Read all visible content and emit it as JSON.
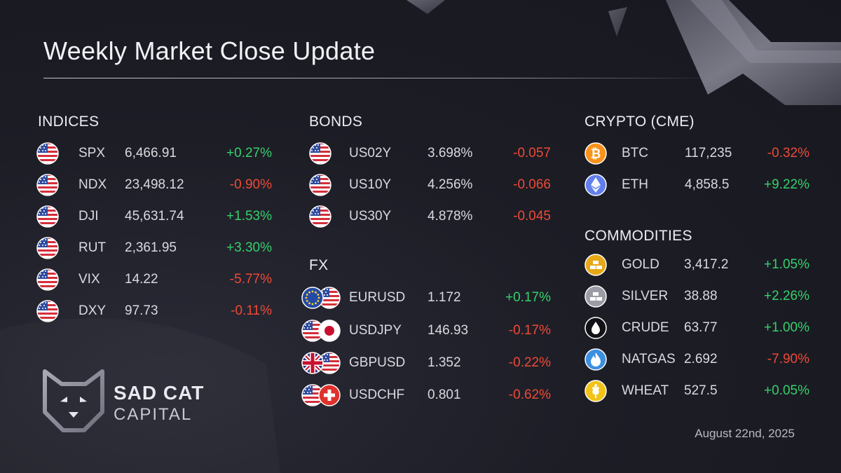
{
  "title": "Weekly Market Close Update",
  "date": "August 22nd, 2025",
  "brand": {
    "line1": "SAD CAT",
    "line2": "CAPITAL"
  },
  "colors": {
    "positive": "#35d16b",
    "negative": "#ee4a35",
    "background": "#1d1d26"
  },
  "indices": {
    "heading": "INDICES",
    "rows": [
      {
        "icon": "us-flag-icon",
        "symbol": "SPX",
        "value": "6,466.91",
        "change": "+0.27%",
        "direction": "up"
      },
      {
        "icon": "us-flag-icon",
        "symbol": "NDX",
        "value": "23,498.12",
        "change": "-0.90%",
        "direction": "down"
      },
      {
        "icon": "us-flag-icon",
        "symbol": "DJI",
        "value": "45,631.74",
        "change": "+1.53%",
        "direction": "up"
      },
      {
        "icon": "us-flag-icon",
        "symbol": "RUT",
        "value": "2,361.95",
        "change": "+3.30%",
        "direction": "up"
      },
      {
        "icon": "us-flag-icon",
        "symbol": "VIX",
        "value": "14.22",
        "change": "-5.77%",
        "direction": "down"
      },
      {
        "icon": "us-flag-icon",
        "symbol": "DXY",
        "value": "97.73",
        "change": "-0.11%",
        "direction": "down"
      }
    ]
  },
  "bonds": {
    "heading": "BONDS",
    "rows": [
      {
        "icon": "us-flag-icon",
        "symbol": "US02Y",
        "value": "3.698%",
        "change": "-0.057",
        "direction": "down"
      },
      {
        "icon": "us-flag-icon",
        "symbol": "US10Y",
        "value": "4.256%",
        "change": "-0.066",
        "direction": "down"
      },
      {
        "icon": "us-flag-icon",
        "symbol": "US30Y",
        "value": "4.878%",
        "change": "-0.045",
        "direction": "down"
      }
    ]
  },
  "fx": {
    "heading": "FX",
    "rows": [
      {
        "icon": "eu-us-flags-icon",
        "symbol": "EURUSD",
        "value": "1.172",
        "change": "+0.17%",
        "direction": "up"
      },
      {
        "icon": "us-jp-flags-icon",
        "symbol": "USDJPY",
        "value": "146.93",
        "change": "-0.17%",
        "direction": "down"
      },
      {
        "icon": "uk-us-flags-icon",
        "symbol": "GBPUSD",
        "value": "1.352",
        "change": "-0.22%",
        "direction": "down"
      },
      {
        "icon": "us-ch-flags-icon",
        "symbol": "USDCHF",
        "value": "0.801",
        "change": "-0.62%",
        "direction": "down"
      }
    ]
  },
  "crypto": {
    "heading": "CRYPTO (CME)",
    "rows": [
      {
        "icon": "bitcoin-icon",
        "symbol": "BTC",
        "value": "117,235",
        "change": "-0.32%",
        "direction": "down"
      },
      {
        "icon": "ethereum-icon",
        "symbol": "ETH",
        "value": "4,858.5",
        "change": "+9.22%",
        "direction": "up"
      }
    ]
  },
  "commodities": {
    "heading": "COMMODITIES",
    "rows": [
      {
        "icon": "gold-bars-icon",
        "symbol": "GOLD",
        "value": "3,417.2",
        "change": "+1.05%",
        "direction": "up"
      },
      {
        "icon": "silver-bars-icon",
        "symbol": "SILVER",
        "value": "38.88",
        "change": "+2.26%",
        "direction": "up"
      },
      {
        "icon": "oil-drop-icon",
        "symbol": "CRUDE",
        "value": "63.77",
        "change": "+1.00%",
        "direction": "up"
      },
      {
        "icon": "gas-flame-icon",
        "symbol": "NATGAS",
        "value": "2.692",
        "change": "-7.90%",
        "direction": "down"
      },
      {
        "icon": "wheat-icon",
        "symbol": "WHEAT",
        "value": "527.5",
        "change": "+0.05%",
        "direction": "up"
      }
    ]
  }
}
